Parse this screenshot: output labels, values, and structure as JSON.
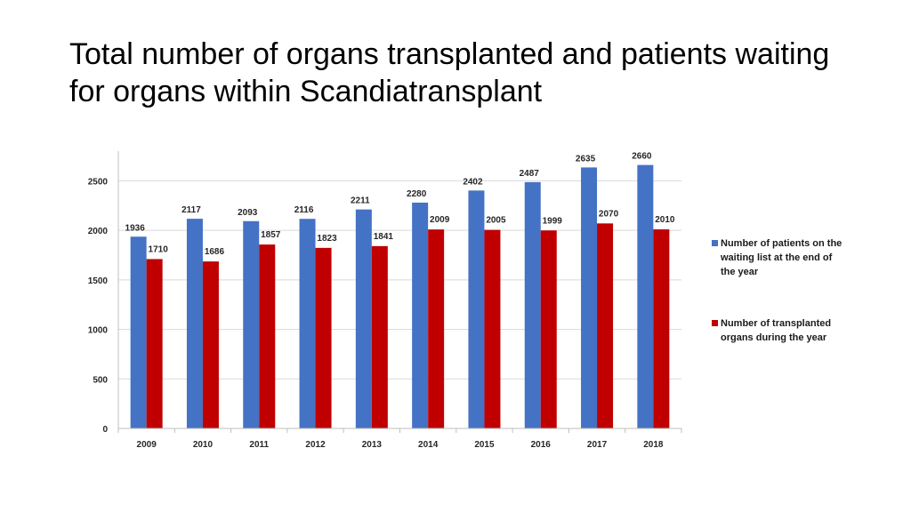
{
  "title": "Total number of organs transplanted and patients waiting for organs within Scandiatransplant",
  "colors": {
    "waiting": "#4472C4",
    "transplanted": "#C00000",
    "grid": "#D9D9D9",
    "axis": "#BFBFBF"
  },
  "chart_data": {
    "type": "bar",
    "title": "Total number of organs transplanted and patients waiting for organs within Scandiatransplant",
    "categories": [
      "2009",
      "2010",
      "2011",
      "2012",
      "2013",
      "2014",
      "2015",
      "2016",
      "2017",
      "2018"
    ],
    "series": [
      {
        "name": "Number of patients on the waiting list at the end of the year",
        "values": [
          1936,
          2117,
          2093,
          2116,
          2211,
          2280,
          2402,
          2487,
          2635,
          2660
        ]
      },
      {
        "name": "Number of transplanted organs during the year",
        "values": [
          1710,
          1686,
          1857,
          1823,
          1841,
          2009,
          2005,
          1999,
          2070,
          2010
        ]
      }
    ],
    "yticks": [
      "0",
      "500",
      "1000",
      "1500",
      "2000",
      "2500"
    ],
    "ylim": [
      0,
      2800
    ],
    "grid": true,
    "legend_position": "right"
  }
}
